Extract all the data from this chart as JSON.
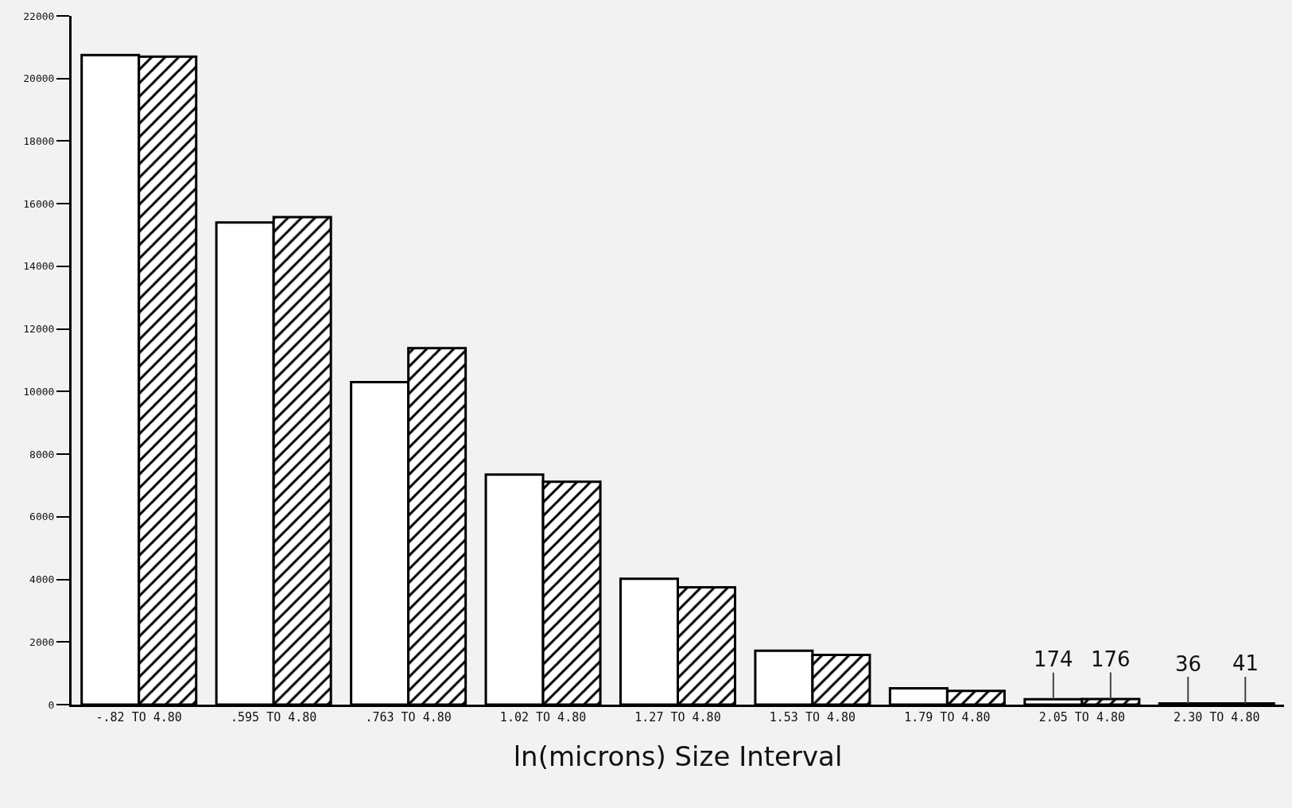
{
  "chart_data": {
    "type": "bar",
    "xlabel": "ln(microns) Size Interval",
    "categories": [
      "-.82 TO 4.80",
      ".595 TO 4.80",
      ".763 TO 4.80",
      "1.02 TO 4.80",
      "1.27 TO 4.80",
      "1.53 TO 4.80",
      "1.79 TO 4.80",
      "2.05 TO 4.80",
      "2.30 TO 4.80"
    ],
    "series": [
      {
        "color": "#ffffff",
        "values": [
          20750,
          15400,
          10300,
          7350,
          4020,
          1720,
          520,
          174,
          36
        ],
        "value_labels": [
          null,
          null,
          null,
          null,
          null,
          null,
          null,
          "174",
          "36"
        ]
      },
      {
        "color": "#000000",
        "values": [
          20700,
          15570,
          11390,
          7120,
          3750,
          1590,
          440,
          176,
          41
        ],
        "value_labels": [
          null,
          null,
          null,
          null,
          null,
          null,
          null,
          "176",
          "41"
        ]
      }
    ],
    "ylim": [
      0,
      22000
    ],
    "yticks": [
      0,
      2000,
      4000,
      6000,
      8000,
      10000,
      12000,
      14000,
      16000,
      18000,
      20000,
      22000
    ],
    "grid": false
  }
}
